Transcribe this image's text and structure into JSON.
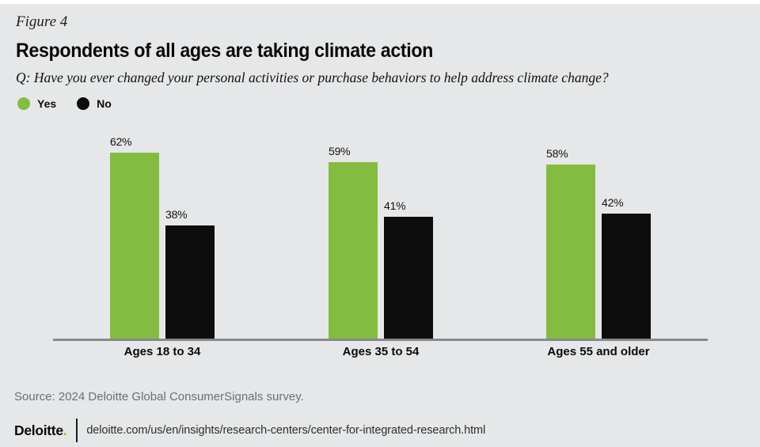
{
  "header": {
    "figure_label": "Figure 4",
    "title": "Respondents of all ages are taking climate action",
    "question": "Q: Have you ever changed your personal activities or purchase behaviors to help address climate change?"
  },
  "legend": {
    "items": [
      {
        "label": "Yes",
        "color": "#84BC41"
      },
      {
        "label": "No",
        "color": "#0C0D0C"
      }
    ]
  },
  "chart_data": {
    "type": "bar",
    "title": "Respondents of all ages are taking climate action",
    "categories": [
      "Ages 18 to 34",
      "Ages 35 to 54",
      "Ages 55 and older"
    ],
    "series": [
      {
        "name": "Yes",
        "color": "#84BC41",
        "values": [
          62,
          59,
          58
        ]
      },
      {
        "name": "No",
        "color": "#0C0D0C",
        "values": [
          38,
          41,
          42
        ]
      }
    ],
    "value_suffix": "%",
    "ylim": [
      0,
      100
    ],
    "grid": false,
    "legend_position": "top-left",
    "axis_line_color": "#87898C"
  },
  "footer": {
    "source": "Source: 2024 Deloitte Global ConsumerSignals survey.",
    "brand": "Deloitte",
    "brand_period": ".",
    "url": "deloitte.com/us/en/insights/research-centers/center-for-integrated-research.html"
  },
  "colors": {
    "background": "#E6E7E8",
    "top_strip": "#FFFFFF",
    "green": "#84BC41",
    "black": "#0C0D0C",
    "axis_gray": "#87898C",
    "source_gray": "#6D6E71"
  }
}
